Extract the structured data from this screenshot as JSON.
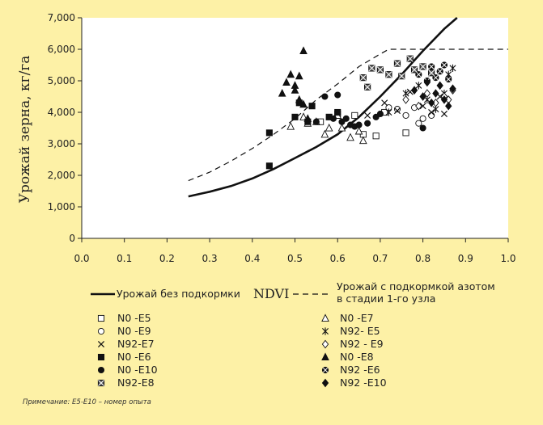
{
  "note": "Примечание: E5-E10 – номер опыта",
  "chart_data": {
    "type": "scatter",
    "ylabel": "Урожай зерна, кг/га",
    "xlabel": "NDVI",
    "xlim": [
      0.0,
      1.0
    ],
    "ylim": [
      0,
      7000
    ],
    "xticks": [
      "0.0",
      "0.1",
      "0.2",
      "0.3",
      "0.4",
      "0.5",
      "0.6",
      "0.7",
      "0.8",
      "0.9",
      "1.0"
    ],
    "yticks": [
      "0",
      "1,000",
      "2,000",
      "3,000",
      "4,000",
      "5,000",
      "6,000",
      "7,000"
    ],
    "grid": false,
    "lines": [
      {
        "name": "Урожай без подкормки",
        "style": "solid",
        "x": [
          0.25,
          0.3,
          0.35,
          0.4,
          0.45,
          0.5,
          0.55,
          0.6,
          0.65,
          0.7,
          0.75,
          0.8,
          0.85,
          0.88
        ],
        "y": [
          1330,
          1480,
          1660,
          1900,
          2200,
          2550,
          2900,
          3300,
          3850,
          4500,
          5200,
          5950,
          6650,
          7000
        ]
      },
      {
        "name": "Урожай с подкормкой азотом в стадии 1-го узла",
        "style": "dashed",
        "x": [
          0.25,
          0.3,
          0.35,
          0.4,
          0.45,
          0.5,
          0.55,
          0.6,
          0.65,
          0.7,
          0.72,
          1.0
        ],
        "y": [
          1830,
          2100,
          2450,
          2850,
          3300,
          3800,
          4400,
          4900,
          5450,
          5850,
          6000,
          6000
        ]
      }
    ],
    "series": [
      {
        "name": "N0 -E5",
        "marker": "square-open",
        "x": [
          0.56,
          0.6,
          0.64,
          0.66,
          0.69,
          0.71,
          0.76
        ],
        "y": [
          3700,
          3950,
          3900,
          3300,
          3250,
          4000,
          3350
        ]
      },
      {
        "name": "N0 -E7",
        "marker": "triangle-open",
        "x": [
          0.49,
          0.52,
          0.53,
          0.55,
          0.57,
          0.58,
          0.6,
          0.61,
          0.63,
          0.65,
          0.66
        ],
        "y": [
          3550,
          3850,
          3650,
          3700,
          3300,
          3500,
          3900,
          3500,
          3200,
          3400,
          3100
        ]
      },
      {
        "name": "N0 -E9",
        "marker": "circle-open",
        "x": [
          0.72,
          0.74,
          0.76,
          0.78,
          0.79,
          0.8,
          0.82
        ],
        "y": [
          4150,
          4100,
          3900,
          4150,
          3650,
          3800,
          3900
        ]
      },
      {
        "name": "N92- E5",
        "marker": "asterisk",
        "x": [
          0.72,
          0.76,
          0.79,
          0.81,
          0.83,
          0.85,
          0.86,
          0.87
        ],
        "y": [
          4000,
          4600,
          4850,
          4400,
          4100,
          4600,
          5200,
          5400
        ]
      },
      {
        "name": "N92-E7",
        "marker": "x",
        "x": [
          0.67,
          0.71,
          0.74,
          0.77,
          0.8,
          0.82,
          0.84,
          0.85
        ],
        "y": [
          3900,
          4300,
          4050,
          4650,
          4200,
          4000,
          4500,
          3950
        ]
      },
      {
        "name": "N92 - E9",
        "marker": "diamond-open",
        "x": [
          0.76,
          0.79,
          0.81,
          0.83,
          0.85,
          0.86,
          0.87
        ],
        "y": [
          4400,
          4200,
          4600,
          4300,
          4500,
          4400,
          4700
        ]
      },
      {
        "name": "N0 -E6",
        "marker": "square",
        "x": [
          0.44,
          0.44,
          0.5,
          0.51,
          0.53,
          0.54,
          0.58,
          0.6
        ],
        "y": [
          3350,
          2300,
          3850,
          4300,
          3700,
          4200,
          3850,
          4000
        ]
      },
      {
        "name": "N0 -E8",
        "marker": "triangle",
        "x": [
          0.47,
          0.48,
          0.49,
          0.5,
          0.5,
          0.51,
          0.51,
          0.52,
          0.52,
          0.53
        ],
        "y": [
          4600,
          4950,
          5200,
          4850,
          4700,
          4400,
          5150,
          5950,
          4250,
          3800
        ]
      },
      {
        "name": "N0 -E10",
        "marker": "circle",
        "x": [
          0.55,
          0.57,
          0.59,
          0.6,
          0.61,
          0.62,
          0.63,
          0.64,
          0.65,
          0.67,
          0.69,
          0.7,
          0.8
        ],
        "y": [
          3700,
          4500,
          3800,
          4550,
          3700,
          3800,
          3600,
          3550,
          3600,
          3650,
          3850,
          3950,
          3500
        ]
      },
      {
        "name": "N92 -E6",
        "marker": "circle-cross",
        "x": [
          0.79,
          0.81,
          0.82,
          0.83,
          0.84,
          0.85,
          0.86
        ],
        "y": [
          5200,
          5000,
          5450,
          5100,
          5300,
          5500,
          5050
        ]
      },
      {
        "name": "N92-E8",
        "marker": "square-cross",
        "x": [
          0.66,
          0.67,
          0.68,
          0.7,
          0.72,
          0.74,
          0.75,
          0.77,
          0.78,
          0.8,
          0.82
        ],
        "y": [
          5100,
          4800,
          5400,
          5350,
          5200,
          5550,
          5150,
          5700,
          5350,
          5450,
          5250
        ]
      },
      {
        "name": "N92 -E10",
        "marker": "diamond",
        "x": [
          0.78,
          0.8,
          0.81,
          0.82,
          0.83,
          0.84,
          0.85,
          0.86,
          0.87
        ],
        "y": [
          4700,
          4500,
          4950,
          4300,
          4600,
          4850,
          4400,
          4200,
          4750
        ]
      }
    ]
  }
}
